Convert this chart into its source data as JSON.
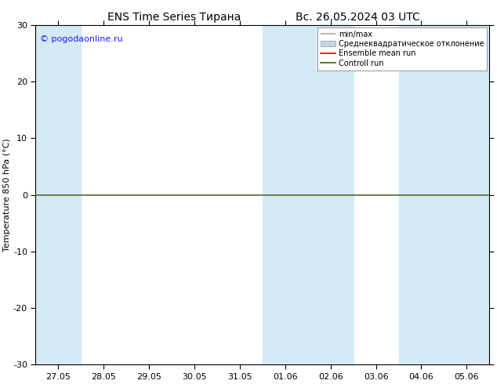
{
  "title_left": "ENS Time Series Тирана",
  "title_right": "Вс. 26.05.2024 03 UTC",
  "ylabel": "Temperature 850 hPa (°C)",
  "watermark": "© pogodaonline.ru",
  "ylim": [
    -30,
    30
  ],
  "yticks": [
    -30,
    -20,
    -10,
    0,
    10,
    20,
    30
  ],
  "x_tick_labels": [
    "27.05",
    "28.05",
    "29.05",
    "30.05",
    "31.05",
    "01.06",
    "02.06",
    "03.06",
    "04.06",
    "05.06"
  ],
  "background_color": "#ffffff",
  "plot_bg_color": "#ffffff",
  "shaded_indices": [
    0,
    5,
    6,
    8,
    9
  ],
  "shaded_color": "#d6eaf5",
  "zero_line_y": 0,
  "zero_line_color": "#556b2f",
  "legend_labels": [
    "min/max",
    "Среднеквадратическое отклонение",
    "Ensemble mean run",
    "Controll run"
  ],
  "legend_line_colors": [
    "#aaaaaa",
    "#c0d8e8",
    "#dd0000",
    "#336600"
  ],
  "watermark_color": "#1a1aff",
  "title_fontsize": 10,
  "legend_fontsize": 7,
  "ylabel_fontsize": 8,
  "tick_fontsize": 8,
  "watermark_fontsize": 8
}
